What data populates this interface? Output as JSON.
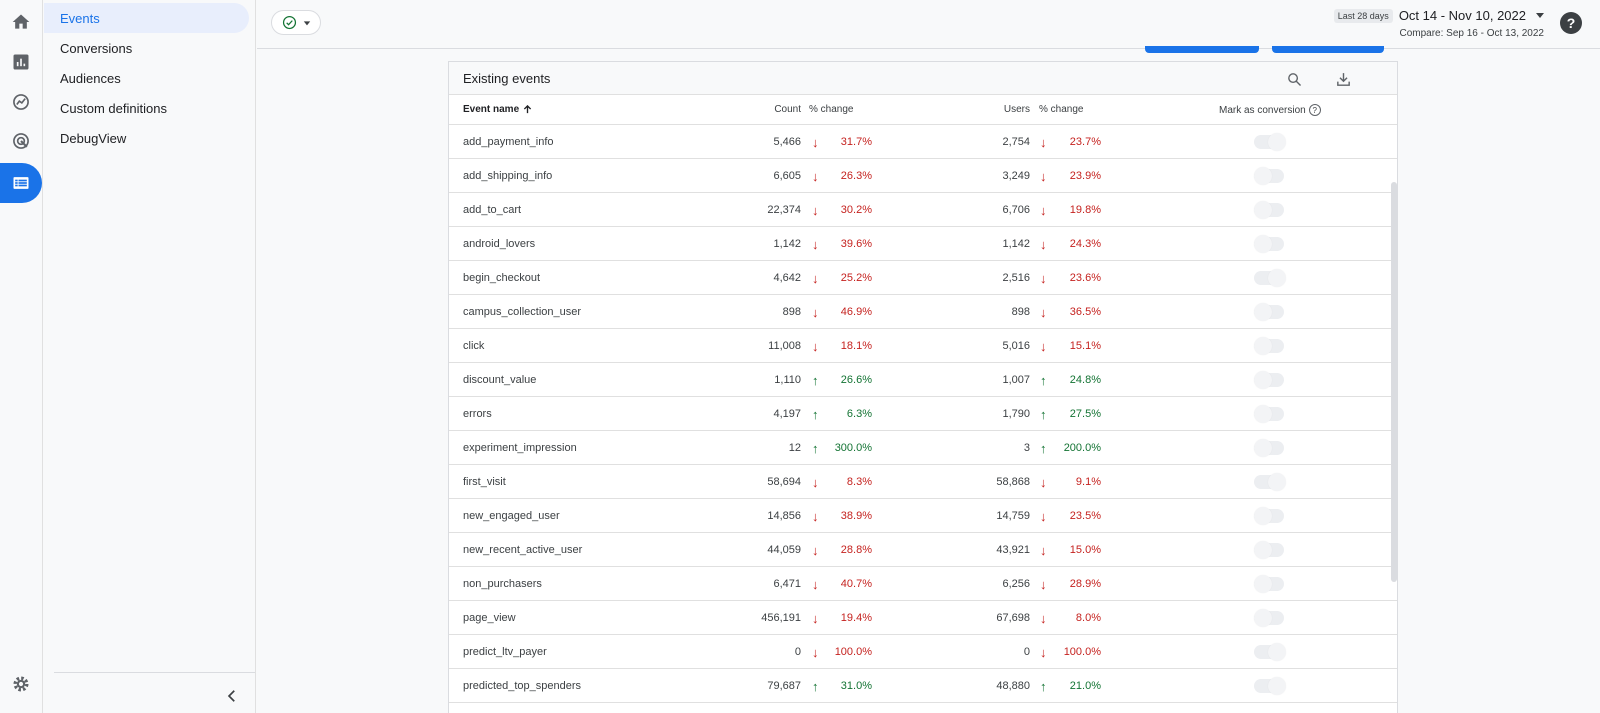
{
  "rail": {
    "items": [
      "home-icon",
      "reports-icon",
      "explore-icon",
      "advertising-icon",
      "configure-icon"
    ],
    "settings_icon": "gear-icon"
  },
  "sidebar": {
    "items": [
      {
        "label": "Events",
        "active": true
      },
      {
        "label": "Conversions",
        "active": false
      },
      {
        "label": "Audiences",
        "active": false
      },
      {
        "label": "Custom definitions",
        "active": false
      },
      {
        "label": "DebugView",
        "active": false
      }
    ]
  },
  "header": {
    "date_tag": "Last 28 days",
    "date_range": "Oct 14 - Nov 10, 2022",
    "compare": "Compare: Sep 16 - Oct 13, 2022",
    "help": "?"
  },
  "card": {
    "title": "Existing events",
    "columns": {
      "name": "Event name",
      "count": "Count",
      "count_change": "% change",
      "users": "Users",
      "users_change": "% change",
      "conversion": "Mark as conversion"
    },
    "rows": [
      {
        "name": "add_payment_info",
        "count": "5,466",
        "count_dir": "down",
        "count_pct": "31.7%",
        "users": "2,754",
        "users_dir": "down",
        "users_pct": "23.7%"
      },
      {
        "name": "add_shipping_info",
        "count": "6,605",
        "count_dir": "down",
        "count_pct": "26.3%",
        "users": "3,249",
        "users_dir": "down",
        "users_pct": "23.9%"
      },
      {
        "name": "add_to_cart",
        "count": "22,374",
        "count_dir": "down",
        "count_pct": "30.2%",
        "users": "6,706",
        "users_dir": "down",
        "users_pct": "19.8%"
      },
      {
        "name": "android_lovers",
        "count": "1,142",
        "count_dir": "down",
        "count_pct": "39.6%",
        "users": "1,142",
        "users_dir": "down",
        "users_pct": "24.3%"
      },
      {
        "name": "begin_checkout",
        "count": "4,642",
        "count_dir": "down",
        "count_pct": "25.2%",
        "users": "2,516",
        "users_dir": "down",
        "users_pct": "23.6%"
      },
      {
        "name": "campus_collection_user",
        "count": "898",
        "count_dir": "down",
        "count_pct": "46.9%",
        "users": "898",
        "users_dir": "down",
        "users_pct": "36.5%"
      },
      {
        "name": "click",
        "count": "11,008",
        "count_dir": "down",
        "count_pct": "18.1%",
        "users": "5,016",
        "users_dir": "down",
        "users_pct": "15.1%"
      },
      {
        "name": "discount_value",
        "count": "1,110",
        "count_dir": "up",
        "count_pct": "26.6%",
        "users": "1,007",
        "users_dir": "up",
        "users_pct": "24.8%"
      },
      {
        "name": "errors",
        "count": "4,197",
        "count_dir": "up",
        "count_pct": "6.3%",
        "users": "1,790",
        "users_dir": "up",
        "users_pct": "27.5%"
      },
      {
        "name": "experiment_impression",
        "count": "12",
        "count_dir": "up",
        "count_pct": "300.0%",
        "users": "3",
        "users_dir": "up",
        "users_pct": "200.0%"
      },
      {
        "name": "first_visit",
        "count": "58,694",
        "count_dir": "down",
        "count_pct": "8.3%",
        "users": "58,868",
        "users_dir": "down",
        "users_pct": "9.1%"
      },
      {
        "name": "new_engaged_user",
        "count": "14,856",
        "count_dir": "down",
        "count_pct": "38.9%",
        "users": "14,759",
        "users_dir": "down",
        "users_pct": "23.5%"
      },
      {
        "name": "new_recent_active_user",
        "count": "44,059",
        "count_dir": "down",
        "count_pct": "28.8%",
        "users": "43,921",
        "users_dir": "down",
        "users_pct": "15.0%"
      },
      {
        "name": "non_purchasers",
        "count": "6,471",
        "count_dir": "down",
        "count_pct": "40.7%",
        "users": "6,256",
        "users_dir": "down",
        "users_pct": "28.9%"
      },
      {
        "name": "page_view",
        "count": "456,191",
        "count_dir": "down",
        "count_pct": "19.4%",
        "users": "67,698",
        "users_dir": "down",
        "users_pct": "8.0%"
      },
      {
        "name": "predict_ltv_payer",
        "count": "0",
        "count_dir": "down",
        "count_pct": "100.0%",
        "users": "0",
        "users_dir": "down",
        "users_pct": "100.0%"
      },
      {
        "name": "predicted_top_spenders",
        "count": "79,687",
        "count_dir": "up",
        "count_pct": "31.0%",
        "users": "48,880",
        "users_dir": "up",
        "users_pct": "21.0%"
      }
    ]
  },
  "colors": {
    "accent": "#1a73e8",
    "down": "#c5221f",
    "up": "#137333"
  }
}
